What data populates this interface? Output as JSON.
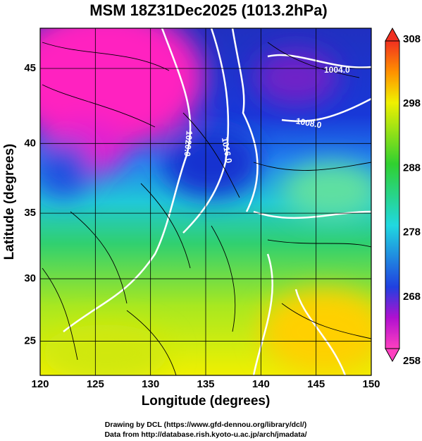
{
  "title": "MSM 18Z31Dec2025 (1013.2hPa)",
  "x_axis": {
    "label": "Longitude (degrees)",
    "ticks": [
      120,
      125,
      130,
      135,
      140,
      145,
      150
    ]
  },
  "y_axis": {
    "label": "Latitude  (degrees)",
    "ticks": [
      25,
      30,
      35,
      40,
      45
    ]
  },
  "colorbar": {
    "ticks": [
      258,
      268,
      278,
      288,
      298,
      308
    ]
  },
  "contour_labels": [
    "1004.0",
    "1008.0",
    "1016.0",
    "1020.0"
  ],
  "credits": [
    "Drawing by DCL (https://www.gfd-dennou.org/library/dcl/)",
    "Data from http://database.rish.kyoto-u.ac.jp/arch/jmadata/"
  ]
}
